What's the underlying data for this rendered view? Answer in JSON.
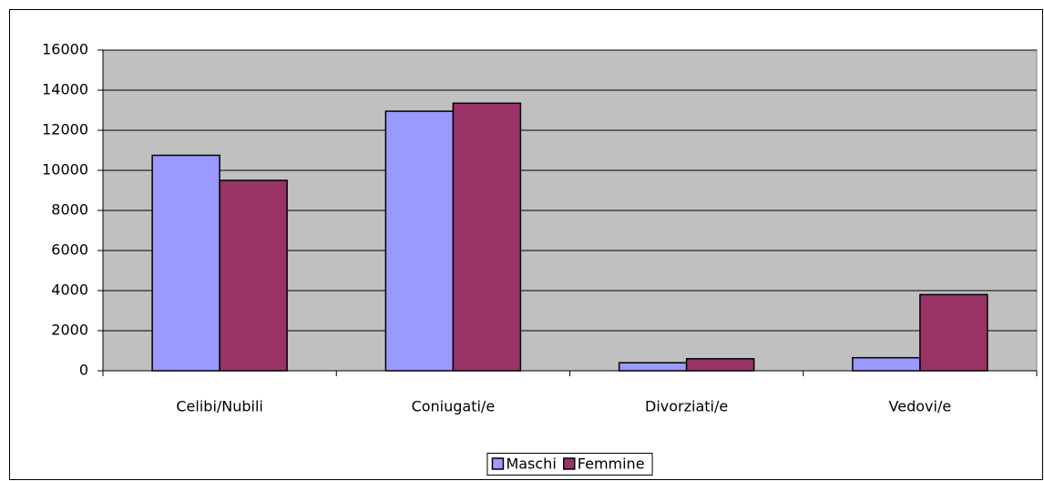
{
  "chart_data": {
    "type": "bar",
    "categories": [
      "Celibi/Nubili",
      "Coniugati/e",
      "Divorziati/e",
      "Vedovi/e"
    ],
    "series": [
      {
        "name": "Maschi",
        "color": "#9999ff",
        "values": [
          10750,
          12950,
          400,
          650
        ]
      },
      {
        "name": "Femmine",
        "color": "#993366",
        "values": [
          9500,
          13350,
          600,
          3800
        ]
      }
    ],
    "ylim": [
      0,
      16000
    ],
    "yticks": [
      0,
      2000,
      4000,
      6000,
      8000,
      10000,
      12000,
      14000,
      16000
    ],
    "grid": true,
    "legend": "bottom"
  }
}
